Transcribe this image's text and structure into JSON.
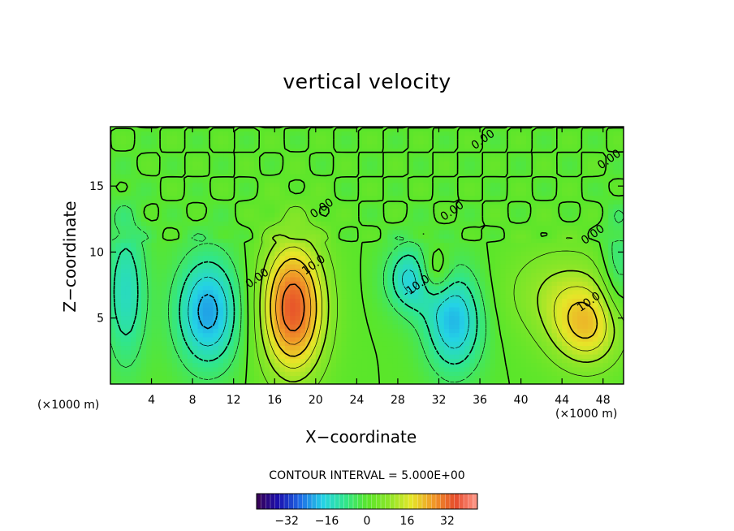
{
  "chart_data": {
    "type": "heatmap",
    "title": "vertical velocity",
    "xlabel": "X−coordinate",
    "ylabel": "Z−coordinate",
    "x_unit_left": "(×1000 m)",
    "x_unit_right": "(×1000 m)",
    "xlim": [
      0,
      50
    ],
    "ylim": [
      0,
      19.5
    ],
    "xticks": [
      4,
      8,
      12,
      16,
      20,
      24,
      28,
      32,
      36,
      40,
      44,
      48
    ],
    "yticks": [
      5,
      10,
      15
    ],
    "contour_interval_text": "CONTOUR INTERVAL = 5.000E+00",
    "colorbar": {
      "range": [
        -44,
        44
      ],
      "ticks": [
        -32,
        -16,
        0,
        16,
        32
      ],
      "tick_labels": [
        "−32",
        "−16",
        "0",
        "16",
        "32"
      ],
      "colors": [
        "#3a0050",
        "#1a10b0",
        "#1e6ee6",
        "#24d2e6",
        "#30e68c",
        "#5ae62a",
        "#8ce628",
        "#e6e628",
        "#f09a28",
        "#e64a2a",
        "#ff9a8c"
      ]
    },
    "contour_labels": [
      {
        "text": "0.00",
        "x": 14.5,
        "y": 7.8
      },
      {
        "text": "0.00",
        "x": 36.5,
        "y": 18.3
      },
      {
        "text": "0.00",
        "x": 20.8,
        "y": 13.1
      },
      {
        "text": "0.00",
        "x": 33.5,
        "y": 12.9
      },
      {
        "text": "0.00",
        "x": 48.8,
        "y": 16.8
      },
      {
        "text": "0.00",
        "x": 47.2,
        "y": 11.1
      },
      {
        "text": "10.0",
        "x": 20.0,
        "y": 8.8
      },
      {
        "text": "10.0",
        "x": 46.8,
        "y": 6.0
      },
      {
        "text": "-10.0",
        "x": 30.0,
        "y": 7.2
      }
    ],
    "field_centers": [
      {
        "x": 17.8,
        "y": 5.8,
        "sx": 2.2,
        "sy": 3.6,
        "value": 34
      },
      {
        "x": 46.5,
        "y": 4.2,
        "sx": 2.6,
        "sy": 2.2,
        "value": 18
      },
      {
        "x": 44.0,
        "y": 7.0,
        "sx": 4.0,
        "sy": 2.5,
        "value": 10
      },
      {
        "x": 31.5,
        "y": 8.4,
        "sx": 1.2,
        "sy": 1.4,
        "value": 14
      },
      {
        "x": 9.5,
        "y": 5.5,
        "sx": 2.2,
        "sy": 3.0,
        "value": -22
      },
      {
        "x": 29.5,
        "y": 8.0,
        "sx": 1.8,
        "sy": 1.8,
        "value": -18
      },
      {
        "x": 33.5,
        "y": 4.8,
        "sx": 2.0,
        "sy": 2.8,
        "value": -20
      },
      {
        "x": 1.5,
        "y": 7.0,
        "sx": 1.4,
        "sy": 4.0,
        "value": -14
      },
      {
        "x": 49.5,
        "y": 8.5,
        "sx": 1.2,
        "sy": 3.0,
        "value": -10
      }
    ]
  }
}
